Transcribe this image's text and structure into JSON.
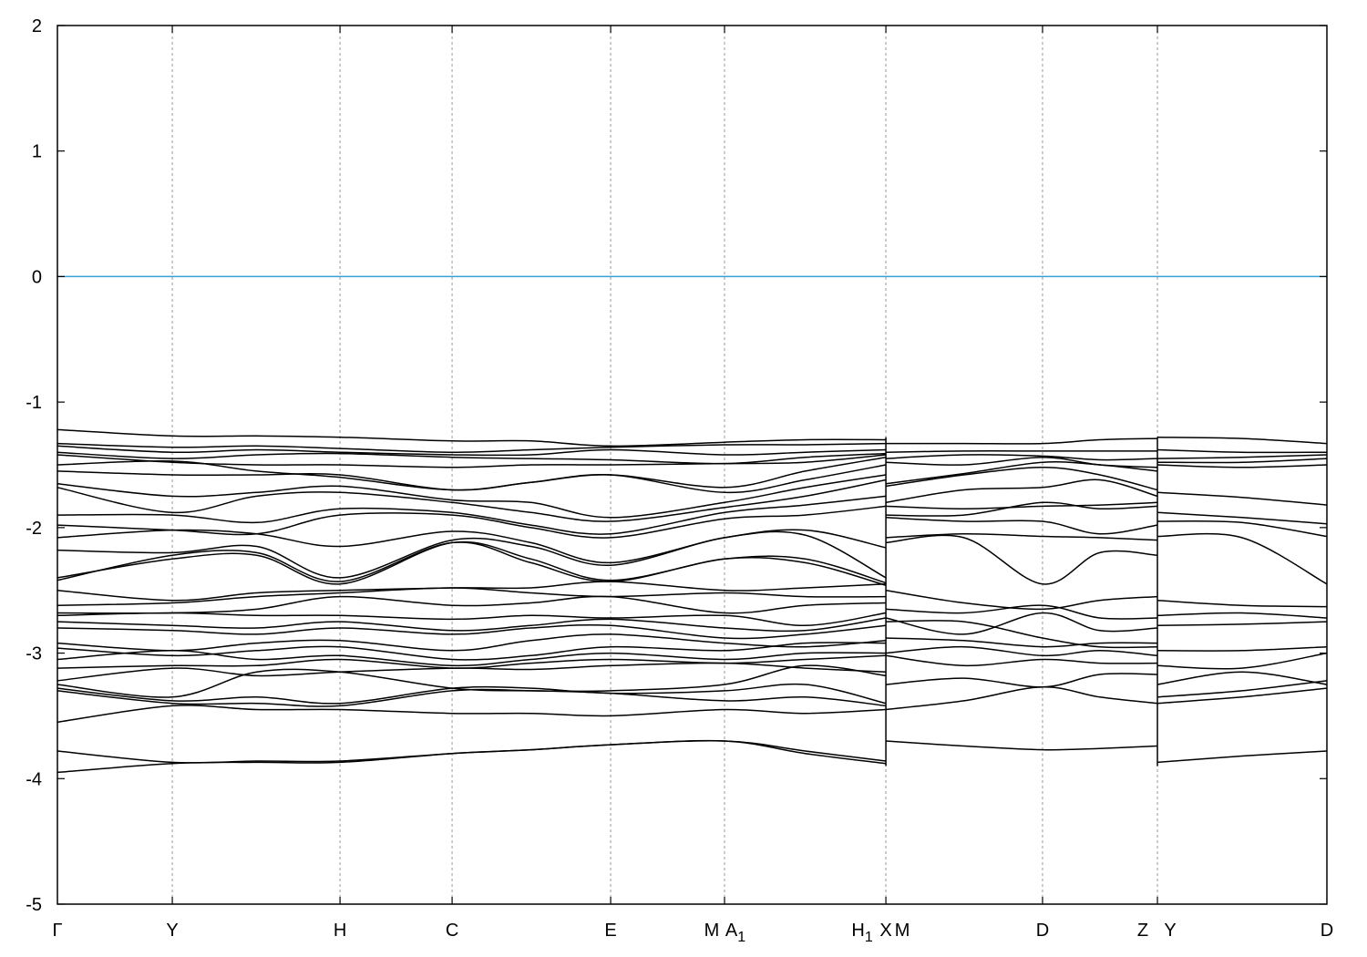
{
  "chart_data": {
    "type": "line",
    "title": "",
    "xlabel": "",
    "ylabel": "",
    "ylim": [
      -5,
      2
    ],
    "yticks": [
      -5,
      -4,
      -3,
      -2,
      -1,
      0,
      1,
      2
    ],
    "xlim": [
      0,
      1
    ],
    "grid": "vertical dashed lines at high-symmetry points",
    "fermi_level": {
      "value": 0,
      "color": "#3a9fd6"
    },
    "band_color": "#000000",
    "kpoints": [
      {
        "label": "Γ",
        "x": 0.0
      },
      {
        "label": "Y",
        "x": 0.0905
      },
      {
        "label": "H",
        "x": 0.2226
      },
      {
        "label": "C",
        "x": 0.3109
      },
      {
        "label": "E",
        "x": 0.4358
      },
      {
        "label": "M",
        "x": 0.5255
      },
      {
        "label": "A",
        "sub": "1",
        "x": 0.5255
      },
      {
        "label": "H",
        "sub": "1",
        "x": 0.6526
      },
      {
        "label": "X",
        "x": 0.6526
      },
      {
        "label": "M",
        "x": 0.6526
      },
      {
        "label": "D",
        "x": 0.776
      },
      {
        "label": "Z",
        "x": 0.8665
      },
      {
        "label": "Y",
        "x": 0.8665
      },
      {
        "label": "D",
        "x": 1.0
      }
    ],
    "segments": [
      {
        "x": [
          0,
          0.0905,
          0.157,
          0.2226,
          0.3109,
          0.373,
          0.4358,
          0.5255,
          0.589,
          0.6526
        ],
        "bands": [
          [
            -1.22,
            -1.27,
            -1.27,
            -1.28,
            -1.31,
            -1.31,
            -1.35,
            -1.32,
            -1.3,
            -1.3
          ],
          [
            -1.33,
            -1.36,
            -1.35,
            -1.37,
            -1.4,
            -1.38,
            -1.36,
            -1.34,
            -1.34,
            -1.33
          ],
          [
            -1.35,
            -1.4,
            -1.38,
            -1.4,
            -1.42,
            -1.42,
            -1.38,
            -1.42,
            -1.4,
            -1.38
          ],
          [
            -1.4,
            -1.45,
            -1.42,
            -1.41,
            -1.44,
            -1.45,
            -1.46,
            -1.49,
            -1.44,
            -1.41
          ],
          [
            -1.42,
            -1.48,
            -1.5,
            -1.5,
            -1.52,
            -1.5,
            -1.5,
            -1.49,
            -1.48,
            -1.42
          ],
          [
            -1.5,
            -1.47,
            -1.55,
            -1.6,
            -1.7,
            -1.64,
            -1.58,
            -1.68,
            -1.55,
            -1.44
          ],
          [
            -1.55,
            -1.58,
            -1.58,
            -1.58,
            -1.7,
            -1.64,
            -1.58,
            -1.72,
            -1.62,
            -1.5
          ],
          [
            -1.65,
            -1.75,
            -1.72,
            -1.67,
            -1.78,
            -1.8,
            -1.92,
            -1.8,
            -1.68,
            -1.58
          ],
          [
            -1.68,
            -1.88,
            -1.75,
            -1.72,
            -1.8,
            -1.88,
            -1.95,
            -1.84,
            -1.75,
            -1.62
          ],
          [
            -1.9,
            -1.9,
            -1.96,
            -1.85,
            -1.88,
            -1.98,
            -2.05,
            -1.88,
            -1.82,
            -1.75
          ],
          [
            -1.98,
            -2.02,
            -2.05,
            -1.9,
            -1.9,
            -2.0,
            -2.08,
            -1.93,
            -1.9,
            -1.83
          ],
          [
            -2.08,
            -2.02,
            -2.05,
            -2.15,
            -2.03,
            -2.12,
            -2.28,
            -2.08,
            -2.02,
            -2.16
          ],
          [
            -2.18,
            -2.2,
            -2.15,
            -2.4,
            -2.1,
            -2.15,
            -2.3,
            -2.08,
            -2.06,
            -2.4
          ],
          [
            -2.4,
            -2.25,
            -2.22,
            -2.45,
            -2.12,
            -2.25,
            -2.42,
            -2.25,
            -2.25,
            -2.44
          ],
          [
            -2.42,
            -2.22,
            -2.2,
            -2.43,
            -2.12,
            -2.28,
            -2.43,
            -2.25,
            -2.28,
            -2.46
          ],
          [
            -2.5,
            -2.58,
            -2.52,
            -2.5,
            -2.48,
            -2.48,
            -2.43,
            -2.5,
            -2.48,
            -2.45
          ],
          [
            -2.62,
            -2.6,
            -2.55,
            -2.52,
            -2.48,
            -2.52,
            -2.55,
            -2.52,
            -2.55,
            -2.55
          ],
          [
            -2.68,
            -2.68,
            -2.65,
            -2.55,
            -2.62,
            -2.6,
            -2.55,
            -2.68,
            -2.62,
            -2.6
          ],
          [
            -2.7,
            -2.68,
            -2.7,
            -2.7,
            -2.73,
            -2.7,
            -2.72,
            -2.7,
            -2.78,
            -2.68
          ],
          [
            -2.75,
            -2.78,
            -2.8,
            -2.75,
            -2.82,
            -2.78,
            -2.73,
            -2.8,
            -2.82,
            -2.72
          ],
          [
            -2.8,
            -2.82,
            -2.85,
            -2.8,
            -2.85,
            -2.8,
            -2.78,
            -2.88,
            -2.85,
            -2.78
          ],
          [
            -2.92,
            -2.98,
            -2.92,
            -2.9,
            -2.98,
            -2.9,
            -2.85,
            -2.92,
            -2.95,
            -2.9
          ],
          [
            -2.96,
            -3.02,
            -2.98,
            -2.95,
            -3.05,
            -3.02,
            -2.95,
            -2.98,
            -2.92,
            -2.92
          ],
          [
            -3.05,
            -2.98,
            -3.05,
            -3.02,
            -3.1,
            -3.05,
            -3.0,
            -3.05,
            -3.0,
            -3.0
          ],
          [
            -3.12,
            -3.1,
            -3.1,
            -3.05,
            -3.12,
            -3.08,
            -3.05,
            -3.08,
            -3.05,
            -3.02
          ],
          [
            -3.22,
            -3.12,
            -3.18,
            -3.15,
            -3.12,
            -3.13,
            -3.1,
            -3.08,
            -3.12,
            -3.15
          ],
          [
            -3.25,
            -3.35,
            -3.15,
            -3.15,
            -3.28,
            -3.3,
            -3.3,
            -3.25,
            -3.1,
            -3.18
          ],
          [
            -3.28,
            -3.38,
            -3.35,
            -3.4,
            -3.28,
            -3.28,
            -3.32,
            -3.3,
            -3.25,
            -3.4
          ],
          [
            -3.3,
            -3.4,
            -3.4,
            -3.42,
            -3.3,
            -3.3,
            -3.32,
            -3.38,
            -3.35,
            -3.42
          ],
          [
            -3.55,
            -3.42,
            -3.45,
            -3.45,
            -3.48,
            -3.48,
            -3.5,
            -3.45,
            -3.48,
            -3.45
          ],
          [
            -3.78,
            -3.87,
            -3.86,
            -3.86,
            -3.8,
            -3.77,
            -3.73,
            -3.7,
            -3.78,
            -3.86
          ],
          [
            -3.95,
            -3.88,
            -3.87,
            -3.87,
            -3.8,
            -3.77,
            -3.73,
            -3.7,
            -3.8,
            -3.88
          ]
        ]
      },
      {
        "x": [
          0.6526,
          0.714,
          0.776,
          0.821,
          0.8665
        ],
        "bands": [
          [
            -1.33,
            -1.33,
            -1.33,
            -1.3,
            -1.29
          ],
          [
            -1.4,
            -1.39,
            -1.39,
            -1.39,
            -1.39
          ],
          [
            -1.45,
            -1.42,
            -1.43,
            -1.46,
            -1.45
          ],
          [
            -1.48,
            -1.5,
            -1.44,
            -1.5,
            -1.52
          ],
          [
            -1.65,
            -1.57,
            -1.48,
            -1.5,
            -1.55
          ],
          [
            -1.67,
            -1.58,
            -1.52,
            -1.58,
            -1.7
          ],
          [
            -1.8,
            -1.7,
            -1.68,
            -1.62,
            -1.75
          ],
          [
            -1.83,
            -1.85,
            -1.83,
            -1.82,
            -1.8
          ],
          [
            -1.9,
            -1.9,
            -1.8,
            -1.85,
            -1.83
          ],
          [
            -1.92,
            -1.95,
            -1.95,
            -2.05,
            -1.98
          ],
          [
            -2.08,
            -2.05,
            -2.07,
            -2.08,
            -2.1
          ],
          [
            -2.12,
            -2.08,
            -2.45,
            -2.2,
            -2.22
          ],
          [
            -2.5,
            -2.6,
            -2.65,
            -2.58,
            -2.55
          ],
          [
            -2.65,
            -2.68,
            -2.62,
            -2.72,
            -2.72
          ],
          [
            -2.72,
            -2.85,
            -2.68,
            -2.82,
            -2.8
          ],
          [
            -2.75,
            -2.75,
            -2.88,
            -2.95,
            -2.95
          ],
          [
            -2.88,
            -2.9,
            -2.95,
            -2.92,
            -2.92
          ],
          [
            -3.0,
            -2.95,
            -3.02,
            -2.98,
            -3.02
          ],
          [
            -3.02,
            -3.1,
            -3.05,
            -3.08,
            -3.08
          ],
          [
            -3.25,
            -3.2,
            -3.27,
            -3.17,
            -3.17
          ],
          [
            -3.45,
            -3.38,
            -3.27,
            -3.35,
            -3.4
          ],
          [
            -3.7,
            -3.74,
            -3.77,
            -3.76,
            -3.74
          ]
        ]
      },
      {
        "x": [
          0.8665,
          0.933,
          1.0
        ],
        "bands": [
          [
            -1.28,
            -1.29,
            -1.33
          ],
          [
            -1.38,
            -1.4,
            -1.4
          ],
          [
            -1.45,
            -1.44,
            -1.42
          ],
          [
            -1.48,
            -1.48,
            -1.45
          ],
          [
            -1.5,
            -1.52,
            -1.5
          ],
          [
            -1.72,
            -1.76,
            -1.82
          ],
          [
            -1.88,
            -1.92,
            -1.97
          ],
          [
            -1.95,
            -1.96,
            -2.07
          ],
          [
            -2.07,
            -2.08,
            -2.45
          ],
          [
            -2.58,
            -2.62,
            -2.63
          ],
          [
            -2.7,
            -2.68,
            -2.72
          ],
          [
            -2.78,
            -2.77,
            -2.75
          ],
          [
            -2.98,
            -2.98,
            -2.95
          ],
          [
            -3.1,
            -3.12,
            -3.0
          ],
          [
            -3.25,
            -3.15,
            -3.25
          ],
          [
            -3.35,
            -3.3,
            -3.22
          ],
          [
            -3.4,
            -3.35,
            -3.28
          ],
          [
            -3.87,
            -3.82,
            -3.78
          ]
        ]
      }
    ]
  }
}
